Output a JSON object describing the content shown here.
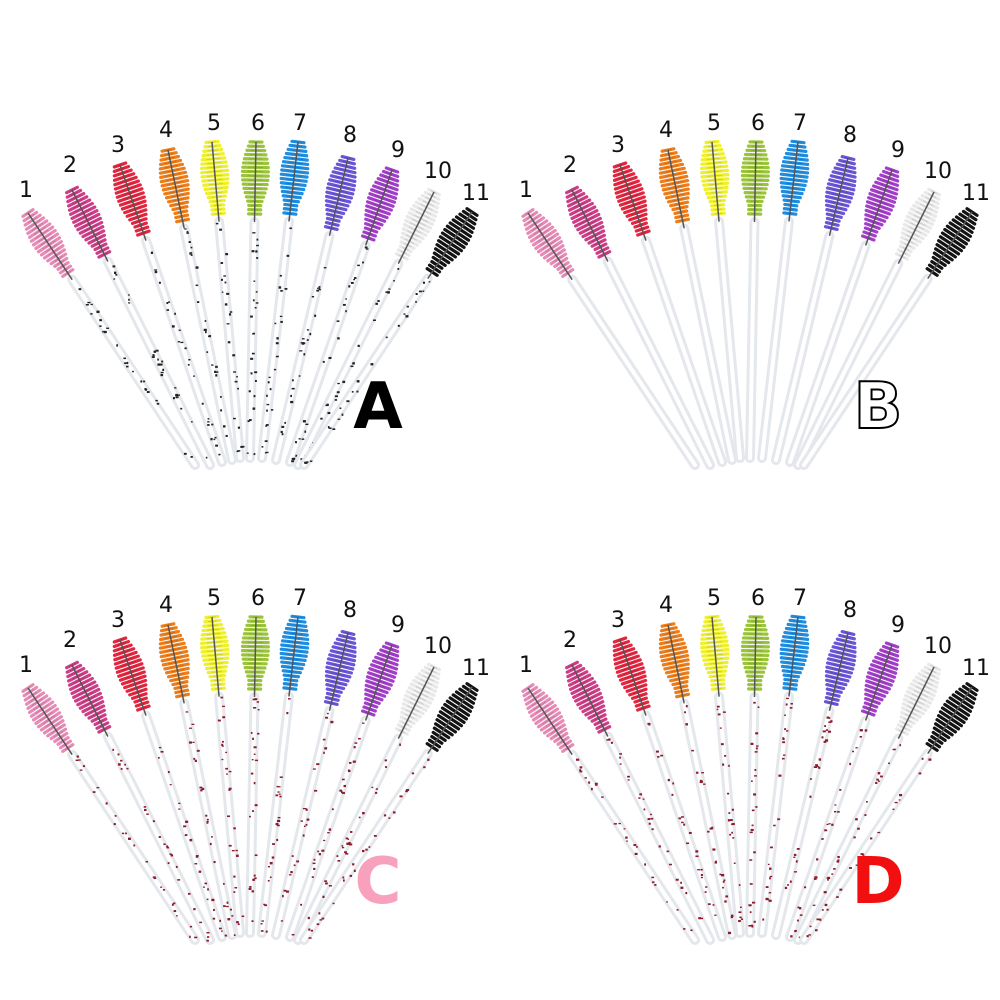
{
  "panels": [
    {
      "letter": "A",
      "letter_color": "#000000",
      "letter_style": "solid",
      "handle_speckle": "#222222",
      "labels": [
        "1",
        "2",
        "3",
        "4",
        "5",
        "6",
        "7",
        "8",
        "9",
        "10",
        "11"
      ]
    },
    {
      "letter": "B",
      "letter_color": "#000000",
      "letter_style": "outline",
      "handle_speckle": "none",
      "labels": [
        "1",
        "2",
        "3",
        "4",
        "5",
        "6",
        "7",
        "8",
        "9",
        "10",
        "11"
      ]
    },
    {
      "letter": "C",
      "letter_color": "#f7a1bd",
      "letter_style": "solid",
      "handle_speckle": "#8b1a2b",
      "labels": [
        "1",
        "2",
        "3",
        "4",
        "5",
        "6",
        "7",
        "8",
        "9",
        "10",
        "11"
      ]
    },
    {
      "letter": "D",
      "letter_color": "#f20f0f",
      "letter_style": "solid",
      "handle_speckle": "#8b1a2b",
      "labels": [
        "1",
        "2",
        "3",
        "4",
        "5",
        "6",
        "7",
        "8",
        "9",
        "10",
        "11"
      ]
    }
  ],
  "brush_colors": [
    "#e58bb6",
    "#cc3e86",
    "#e2263f",
    "#ec7d1a",
    "#eef02c",
    "#9bc43a",
    "#1f8de0",
    "#6a55d6",
    "#a23fc8",
    "#e8e8e8",
    "#141414"
  ]
}
